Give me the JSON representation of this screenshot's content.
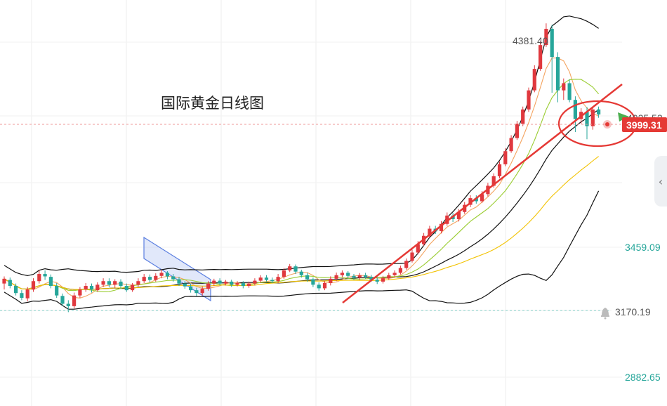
{
  "chart_data": {
    "type": "candlestick",
    "title": "国际黄金日线图",
    "y_axis_labels": [
      "3459.09",
      "3170.19",
      "2882.65"
    ],
    "current_price": "3999.31",
    "partial_label": "4025.52",
    "high_label": "4381.40",
    "alert_price": "3170.19",
    "price_range": [
      2800,
      4420
    ],
    "candles": [
      [
        3290,
        3310,
        3265,
        3320
      ],
      [
        3305,
        3280,
        3270,
        3315
      ],
      [
        3280,
        3250,
        3240,
        3290
      ],
      [
        3250,
        3230,
        3220,
        3262
      ],
      [
        3228,
        3265,
        3215,
        3275
      ],
      [
        3265,
        3300,
        3255,
        3312
      ],
      [
        3300,
        3330,
        3290,
        3345
      ],
      [
        3330,
        3320,
        3305,
        3345
      ],
      [
        3318,
        3280,
        3270,
        3328
      ],
      [
        3280,
        3240,
        3230,
        3292
      ],
      [
        3238,
        3205,
        3195,
        3248
      ],
      [
        3205,
        3195,
        3170,
        3220
      ],
      [
        3195,
        3240,
        3185,
        3252
      ],
      [
        3240,
        3265,
        3230,
        3275
      ],
      [
        3265,
        3280,
        3255,
        3292
      ],
      [
        3280,
        3265,
        3252,
        3290
      ],
      [
        3262,
        3285,
        3255,
        3295
      ],
      [
        3285,
        3300,
        3275,
        3312
      ],
      [
        3300,
        3285,
        3275,
        3312
      ],
      [
        3285,
        3300,
        3272,
        3308
      ],
      [
        3298,
        3280,
        3268,
        3308
      ],
      [
        3280,
        3262,
        3255,
        3290
      ],
      [
        3262,
        3285,
        3255,
        3292
      ],
      [
        3285,
        3300,
        3278,
        3312
      ],
      [
        3300,
        3318,
        3292,
        3330
      ],
      [
        3318,
        3305,
        3295,
        3328
      ],
      [
        3305,
        3322,
        3298,
        3333
      ],
      [
        3322,
        3335,
        3312,
        3348
      ],
      [
        3335,
        3320,
        3308,
        3342
      ],
      [
        3320,
        3308,
        3298,
        3330
      ],
      [
        3308,
        3290,
        3280,
        3318
      ],
      [
        3290,
        3278,
        3268,
        3300
      ],
      [
        3278,
        3262,
        3252,
        3290
      ],
      [
        3262,
        3250,
        3238,
        3272
      ],
      [
        3250,
        3268,
        3240,
        3278
      ],
      [
        3268,
        3290,
        3260,
        3300
      ],
      [
        3290,
        3302,
        3280,
        3310
      ],
      [
        3302,
        3290,
        3282,
        3312
      ],
      [
        3290,
        3298,
        3282,
        3305
      ],
      [
        3298,
        3285,
        3276,
        3306
      ],
      [
        3285,
        3292,
        3278,
        3300
      ],
      [
        3292,
        3280,
        3270,
        3300
      ],
      [
        3280,
        3290,
        3272,
        3298
      ],
      [
        3290,
        3302,
        3282,
        3312
      ],
      [
        3302,
        3315,
        3295,
        3325
      ],
      [
        3315,
        3305,
        3298,
        3325
      ],
      [
        3305,
        3300,
        3292,
        3315
      ],
      [
        3300,
        3318,
        3292,
        3330
      ],
      [
        3318,
        3345,
        3310,
        3355
      ],
      [
        3345,
        3362,
        3338,
        3372
      ],
      [
        3362,
        3340,
        3330,
        3370
      ],
      [
        3340,
        3325,
        3315,
        3348
      ],
      [
        3325,
        3308,
        3298,
        3335
      ],
      [
        3308,
        3285,
        3275,
        3315
      ],
      [
        3285,
        3270,
        3260,
        3295
      ],
      [
        3270,
        3292,
        3262,
        3300
      ],
      [
        3292,
        3310,
        3282,
        3320
      ],
      [
        3310,
        3325,
        3300,
        3336
      ],
      [
        3325,
        3335,
        3315,
        3345
      ],
      [
        3335,
        3322,
        3310,
        3342
      ],
      [
        3322,
        3315,
        3305,
        3330
      ],
      [
        3315,
        3325,
        3305,
        3334
      ],
      [
        3325,
        3318,
        3310,
        3335
      ],
      [
        3318,
        3306,
        3298,
        3326
      ],
      [
        3306,
        3298,
        3288,
        3315
      ],
      [
        3298,
        3312,
        3290,
        3322
      ],
      [
        3312,
        3325,
        3305,
        3335
      ],
      [
        3325,
        3335,
        3318,
        3345
      ],
      [
        3335,
        3355,
        3328,
        3365
      ],
      [
        3355,
        3385,
        3348,
        3395
      ],
      [
        3385,
        3420,
        3378,
        3432
      ],
      [
        3420,
        3455,
        3412,
        3468
      ],
      [
        3455,
        3490,
        3448,
        3502
      ],
      [
        3490,
        3520,
        3482,
        3532
      ],
      [
        3520,
        3510,
        3498,
        3532
      ],
      [
        3510,
        3540,
        3500,
        3552
      ],
      [
        3540,
        3575,
        3532,
        3588
      ],
      [
        3575,
        3560,
        3548,
        3586
      ],
      [
        3560,
        3590,
        3550,
        3602
      ],
      [
        3590,
        3620,
        3582,
        3632
      ],
      [
        3620,
        3648,
        3610,
        3660
      ],
      [
        3648,
        3635,
        3625,
        3660
      ],
      [
        3635,
        3665,
        3628,
        3678
      ],
      [
        3665,
        3700,
        3655,
        3712
      ],
      [
        3700,
        3740,
        3692,
        3752
      ],
      [
        3740,
        3790,
        3732,
        3802
      ],
      [
        3790,
        3845,
        3782,
        3858
      ],
      [
        3845,
        3900,
        3838,
        3912
      ],
      [
        3900,
        3960,
        3892,
        3972
      ],
      [
        3960,
        4020,
        3950,
        4032
      ],
      [
        4020,
        4100,
        4010,
        4112
      ],
      [
        4100,
        4190,
        4092,
        4205
      ],
      [
        4190,
        4290,
        4182,
        4305
      ],
      [
        4290,
        4358,
        4282,
        4381
      ],
      [
        4358,
        4240,
        4090,
        4375
      ],
      [
        4240,
        4100,
        4050,
        4260
      ],
      [
        4100,
        4130,
        4060,
        4150
      ],
      [
        4130,
        4060,
        4050,
        4145
      ],
      [
        4060,
        3980,
        3925,
        4075
      ],
      [
        3980,
        4010,
        3960,
        4025
      ],
      [
        4010,
        3950,
        3895,
        4030
      ],
      [
        3950,
        4020,
        3935,
        4032
      ],
      [
        4020,
        3999,
        3985,
        4032
      ]
    ],
    "indicators": [
      "Bollinger Bands",
      "Moving Averages"
    ],
    "annotations": [
      "red trendline",
      "red ellipse",
      "blue falling channel"
    ]
  }
}
